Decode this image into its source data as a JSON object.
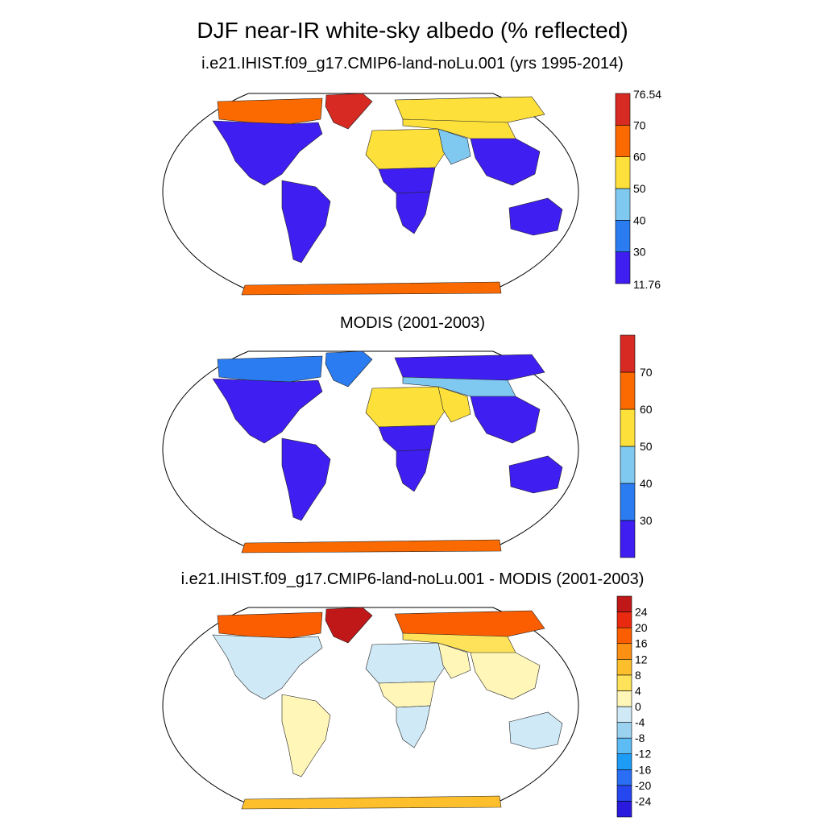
{
  "title": "DJF near-IR white-sky albedo (% reflected)",
  "chart_data": [
    {
      "type": "heatmap",
      "projection": "Robinson",
      "title": "i.e21.IHIST.f09_g17.CMIP6-land-noLu.001 (yrs 1995-2014)",
      "colorbar": {
        "labels": [
          "76.54",
          "70",
          "60",
          "50",
          "40",
          "30",
          "11.76"
        ],
        "levels": [
          11.76,
          30,
          40,
          50,
          60,
          70,
          76.54
        ],
        "colors": [
          "#3f1ef2",
          "#2b7cf0",
          "#7fc8f0",
          "#fde03a",
          "#fb6a00",
          "#d62a22"
        ],
        "min": 11.76,
        "max": 76.54
      },
      "regions": [
        {
          "name": "Greenland",
          "value": 75
        },
        {
          "name": "Canadian Arctic",
          "value": 65
        },
        {
          "name": "North America",
          "value": 22
        },
        {
          "name": "South America",
          "value": 18
        },
        {
          "name": "Sahara",
          "value": 52
        },
        {
          "name": "Central Africa",
          "value": 18
        },
        {
          "name": "Southern Africa",
          "value": 22
        },
        {
          "name": "Arabia",
          "value": 48
        },
        {
          "name": "Siberia",
          "value": 58
        },
        {
          "name": "Central Asia",
          "value": 55
        },
        {
          "name": "South Asia",
          "value": 25
        },
        {
          "name": "Australia",
          "value": 28
        },
        {
          "name": "Antarctica",
          "value": 65
        }
      ]
    },
    {
      "type": "heatmap",
      "projection": "Robinson",
      "title": "MODIS (2001-2003)",
      "colorbar": {
        "labels": [
          "70",
          "60",
          "50",
          "40",
          "30"
        ],
        "levels": [
          20,
          30,
          40,
          50,
          60,
          70,
          80
        ],
        "colors": [
          "#3f1ef2",
          "#2b7cf0",
          "#7fc8f0",
          "#fde03a",
          "#fb6a00",
          "#d62a22"
        ],
        "min": 20,
        "max": 80
      },
      "regions": [
        {
          "name": "Greenland",
          "value": 35
        },
        {
          "name": "Canadian Arctic",
          "value": 38
        },
        {
          "name": "North America",
          "value": 22
        },
        {
          "name": "South America",
          "value": 18
        },
        {
          "name": "Sahara",
          "value": 52
        },
        {
          "name": "Central Africa",
          "value": 18
        },
        {
          "name": "Southern Africa",
          "value": 22
        },
        {
          "name": "Arabia",
          "value": 50
        },
        {
          "name": "Siberia",
          "value": 28
        },
        {
          "name": "Central Asia",
          "value": 45
        },
        {
          "name": "South Asia",
          "value": 22
        },
        {
          "name": "Australia",
          "value": 22
        },
        {
          "name": "Antarctica",
          "value": 62
        }
      ]
    },
    {
      "type": "heatmap",
      "projection": "Robinson",
      "title": "i.e21.IHIST.f09_g17.CMIP6-land-noLu.001 - MODIS (2001-2003)",
      "colorbar": {
        "labels": [
          "24",
          "20",
          "16",
          "12",
          "8",
          "4",
          "0",
          "-4",
          "-8",
          "-12",
          "-16",
          "-20",
          "-24"
        ],
        "levels": [
          -28,
          -24,
          -20,
          -16,
          -12,
          -8,
          -4,
          0,
          4,
          8,
          12,
          16,
          20,
          24,
          28
        ],
        "colors": [
          "#2a1ae0",
          "#2646f0",
          "#2a6ff3",
          "#1e9cf5",
          "#5cbcf3",
          "#9ad2f0",
          "#cfe9f7",
          "#fff6b8",
          "#fde25a",
          "#fdbf2c",
          "#fb9012",
          "#fb5e00",
          "#ea2a10",
          "#c01818"
        ],
        "min": -28,
        "max": 28
      },
      "regions": [
        {
          "name": "Greenland",
          "value": 26
        },
        {
          "name": "Canadian Arctic",
          "value": 18
        },
        {
          "name": "North America",
          "value": -3
        },
        {
          "name": "South America",
          "value": 2
        },
        {
          "name": "Sahara",
          "value": -3
        },
        {
          "name": "Central Africa",
          "value": 1
        },
        {
          "name": "Southern Africa",
          "value": -3
        },
        {
          "name": "Arabia",
          "value": 2
        },
        {
          "name": "Siberia",
          "value": 18
        },
        {
          "name": "Central Asia",
          "value": 6
        },
        {
          "name": "South Asia",
          "value": 3
        },
        {
          "name": "Australia",
          "value": -2
        },
        {
          "name": "Antarctica",
          "value": 10
        }
      ]
    }
  ]
}
